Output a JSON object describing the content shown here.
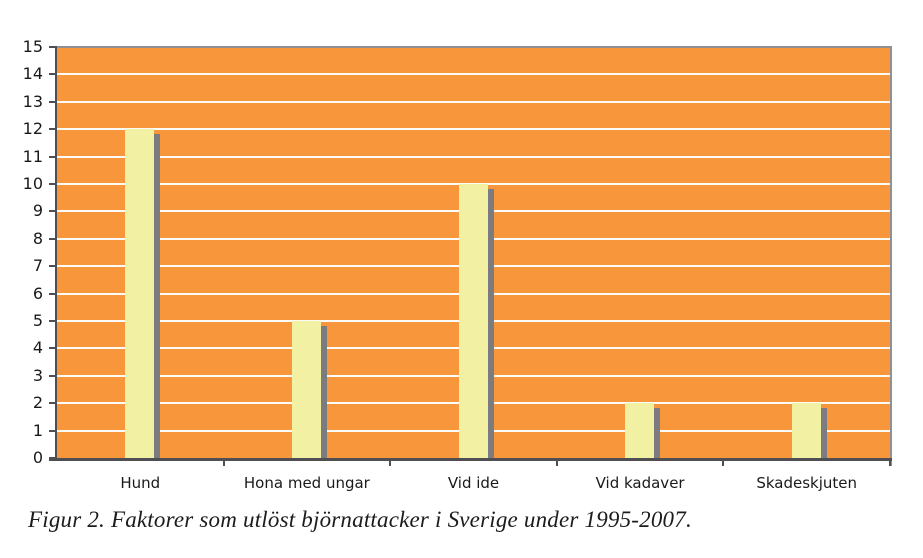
{
  "caption": "Figur 2. Faktorer som utlöst björnattacker i Sverige under 1995-2007.",
  "chart_data": {
    "type": "bar",
    "title": "",
    "xlabel": "",
    "ylabel": "",
    "categories": [
      "Hund",
      "Hona med ungar",
      "Vid ide",
      "Vid kadaver",
      "Skadeskjuten"
    ],
    "values": [
      12,
      5,
      10,
      2,
      2
    ],
    "ylim": [
      0,
      15
    ],
    "yticks": [
      0,
      1,
      2,
      3,
      4,
      5,
      6,
      7,
      8,
      9,
      10,
      11,
      12,
      13,
      14,
      15
    ],
    "grid": "horizontal",
    "legend": "none",
    "colors": {
      "plot_bg": "#F7963B",
      "bar_fill": "#F2F0A2",
      "bar_shadow": "#7B7B80",
      "gridline": "#FDFBF7",
      "axis": "#4E4E53",
      "border": "#8F8F94",
      "text": "#1A1A1A"
    }
  }
}
